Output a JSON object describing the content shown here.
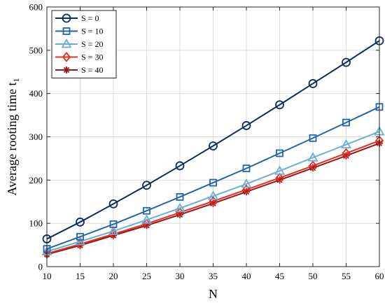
{
  "chart_data": {
    "type": "line",
    "xlabel": "N",
    "ylabel": "Average rooting time",
    "ylabel_subscript_base": "t",
    "ylabel_subscript": "1",
    "xlim": [
      10,
      60
    ],
    "ylim": [
      0,
      600
    ],
    "xticks": [
      10,
      15,
      20,
      25,
      30,
      35,
      40,
      45,
      50,
      55,
      60
    ],
    "yticks": [
      0,
      100,
      200,
      300,
      400,
      500,
      600
    ],
    "grid": true,
    "legend_position": "top-left",
    "x": [
      10,
      15,
      20,
      25,
      30,
      35,
      40,
      45,
      50,
      55,
      60
    ],
    "series": [
      {
        "name": "S = 0",
        "color": "#0d2d5e",
        "marker": "circle",
        "values": [
          64,
          103,
          145,
          188,
          233,
          279,
          326,
          374,
          423,
          472,
          522
        ]
      },
      {
        "name": "S = 10",
        "color": "#2166ac",
        "marker": "square",
        "values": [
          41,
          69,
          98,
          129,
          161,
          194,
          227,
          262,
          297,
          333,
          369
        ]
      },
      {
        "name": "S = 20",
        "color": "#6baed6",
        "marker": "triangle",
        "values": [
          35,
          58,
          82,
          108,
          135,
          163,
          191,
          221,
          252,
          282,
          312
        ]
      },
      {
        "name": "S = 30",
        "color": "#e03020",
        "marker": "diamond",
        "values": [
          30,
          52,
          75,
          99,
          125,
          151,
          178,
          205,
          233,
          262,
          291
        ]
      },
      {
        "name": "S = 40",
        "color": "#99161a",
        "marker": "asterisk",
        "values": [
          28,
          49,
          72,
          95,
          120,
          146,
          173,
          200,
          228,
          256,
          285
        ]
      }
    ]
  }
}
